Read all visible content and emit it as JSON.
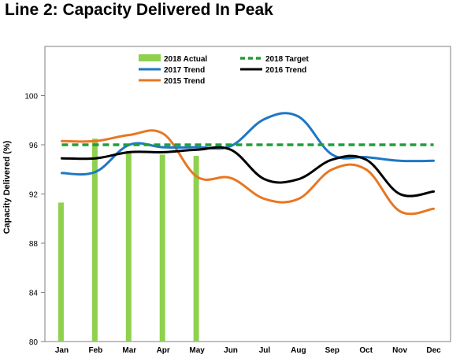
{
  "chart_data": {
    "type": "line",
    "title": "Line 2: Capacity Delivered In Peak",
    "xlabel": "",
    "ylabel": "Capacity Delivered (%)",
    "ylim": [
      80,
      104
    ],
    "yticks": [
      80,
      84,
      88,
      92,
      96,
      100
    ],
    "categories": [
      "Jan",
      "Feb",
      "Mar",
      "Apr",
      "May",
      "Jun",
      "Jul",
      "Aug",
      "Sep",
      "Oct",
      "Nov",
      "Dec"
    ],
    "grid": false,
    "legend": "top-center",
    "series": [
      {
        "name": "2018 Actual",
        "kind": "bar",
        "color": "#8fd14f",
        "values": [
          91.3,
          96.5,
          95.5,
          95.2,
          95.1,
          null,
          null,
          null,
          null,
          null,
          null,
          null
        ]
      },
      {
        "name": "2018 Target",
        "kind": "dashed-line",
        "color": "#1f9e3a",
        "values": [
          96,
          96,
          96,
          96,
          96,
          96,
          96,
          96,
          96,
          96,
          96,
          96
        ]
      },
      {
        "name": "2017 Trend",
        "kind": "line",
        "color": "#1f77c4",
        "values": [
          93.7,
          93.8,
          96.0,
          95.8,
          95.8,
          95.9,
          98.1,
          98.3,
          95.2,
          95.0,
          94.7,
          94.7
        ]
      },
      {
        "name": "2016 Trend",
        "kind": "line",
        "color": "#000000",
        "values": [
          94.9,
          94.9,
          95.4,
          95.4,
          95.6,
          95.6,
          93.2,
          93.2,
          94.8,
          94.8,
          92.0,
          92.2
        ]
      },
      {
        "name": "2015 Trend",
        "kind": "line",
        "color": "#e87722",
        "values": [
          96.3,
          96.3,
          96.8,
          96.9,
          93.4,
          93.3,
          91.6,
          91.6,
          94.0,
          94.0,
          90.6,
          90.8
        ]
      }
    ]
  }
}
